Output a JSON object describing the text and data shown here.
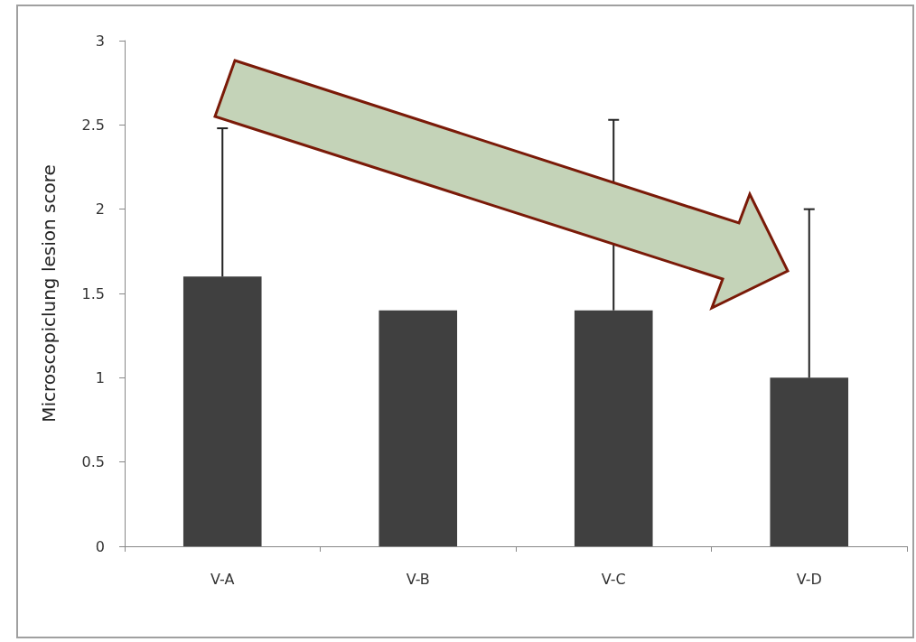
{
  "chart_data": {
    "type": "bar",
    "ylabel": "Microscopiclung lesion score",
    "categories": [
      "V-A",
      "V-B",
      "V-C",
      "V-D"
    ],
    "values": [
      1.6,
      1.4,
      1.4,
      1.0
    ],
    "errors": [
      0.88,
      null,
      1.13,
      1.0
    ],
    "color": "#404040",
    "ylim": [
      0,
      3
    ],
    "yticks": [
      0,
      0.5,
      1,
      1.5,
      2,
      2.5,
      3
    ],
    "grid": false
  }
}
